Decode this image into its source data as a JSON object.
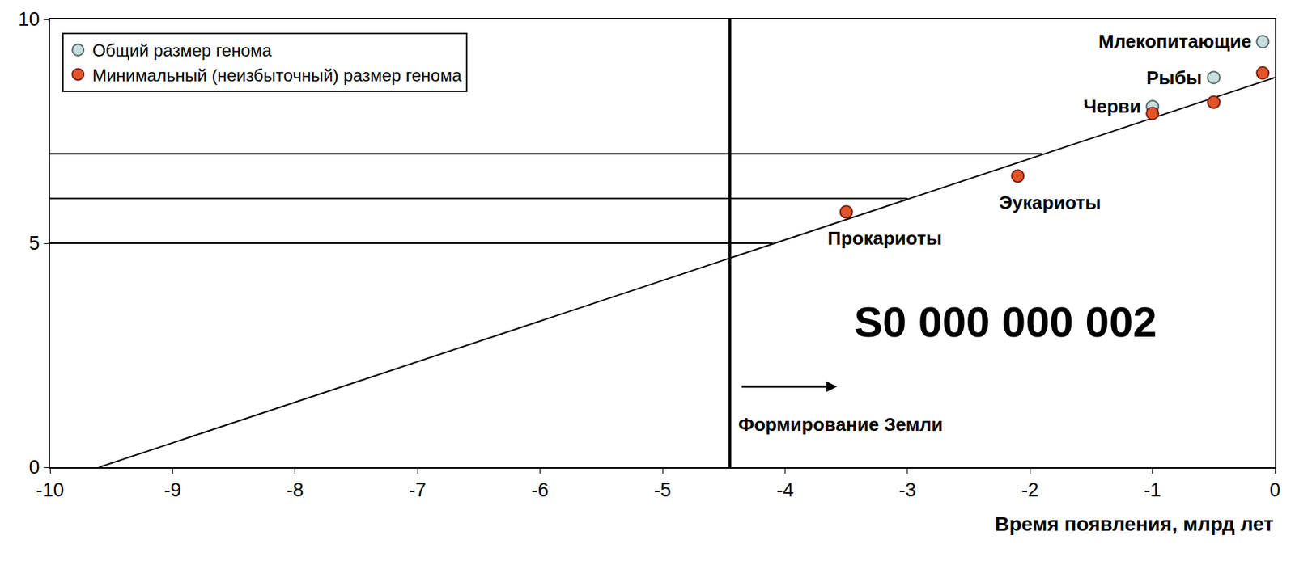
{
  "chart_data": {
    "type": "scatter",
    "x_label": "Время появления, млрд лет",
    "xlim": [
      -10,
      0
    ],
    "xticks": [
      -10,
      -9,
      -8,
      -7,
      -6,
      -5,
      -4,
      -3,
      -2,
      -1,
      0
    ],
    "ylim": [
      0,
      10
    ],
    "yticks": [
      0,
      5,
      10
    ],
    "grid": false,
    "legend": "upper left",
    "series": [
      {
        "name": "Общий размер генома",
        "color": "#c6dede",
        "marker": "circle",
        "x": [
          -1.0,
          -0.5,
          -0.1
        ],
        "values": [
          8.05,
          8.7,
          9.5
        ],
        "labels": [
          "Черви",
          "Рыбы",
          "Млекопитающие"
        ]
      },
      {
        "name": "Минимальный (неизбыточный) размер генома",
        "color": "#e2542a",
        "marker": "circle",
        "x": [
          -3.5,
          -2.1,
          -1.0,
          -0.5,
          -0.1
        ],
        "values": [
          5.7,
          6.5,
          7.9,
          8.15,
          8.8
        ],
        "labels": [
          "Прокариоты",
          "Эукариоты",
          null,
          null,
          null
        ]
      }
    ],
    "trend_line": {
      "x": [
        -9.6,
        0
      ],
      "values": [
        0,
        8.7
      ]
    },
    "reference_lines": [
      {
        "y": 7,
        "x": [
          -10,
          -1.9
        ]
      },
      {
        "y": 6,
        "x": [
          -10,
          -3.0
        ]
      },
      {
        "y": 5,
        "x": [
          -10,
          -4.1
        ]
      }
    ],
    "vertical_line": {
      "x": -4.45,
      "label": "Формирование Земли"
    },
    "annotations": [
      {
        "text": "S0 000 000 002",
        "x": -2.2,
        "y": 3.24
      }
    ]
  }
}
